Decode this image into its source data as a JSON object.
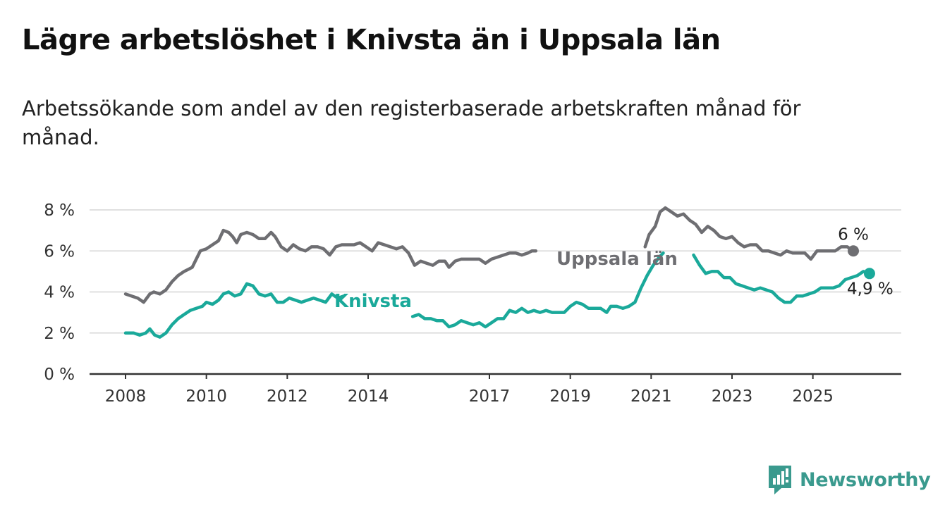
{
  "title": "Lägre arbetslöshet i Knivsta än i Uppsala län",
  "subtitle": "Arbetssökande som andel av den registerbaserade arbetskraften månad för månad.",
  "brand": {
    "name": "Newsworthy",
    "icon": "newsworthy-logo-icon",
    "color": "#3a9a8e"
  },
  "chart_data": {
    "type": "line",
    "title": "Lägre arbetslöshet i Knivsta än i Uppsala län",
    "ylabel": "",
    "xlabel": "",
    "ylim": [
      0,
      8
    ],
    "yticks": [
      {
        "value": 0,
        "label": "0 %"
      },
      {
        "value": 2,
        "label": "2 %"
      },
      {
        "value": 4,
        "label": "4 %"
      },
      {
        "value": 6,
        "label": "6 %"
      },
      {
        "value": 8,
        "label": "8 %"
      }
    ],
    "xticks": [
      {
        "value": 2008.0,
        "label": "2008"
      },
      {
        "value": 2010.0,
        "label": "2010"
      },
      {
        "value": 2012.0,
        "label": "2012"
      },
      {
        "value": 2014.0,
        "label": "2014"
      },
      {
        "value": 2017.0,
        "label": "2017"
      },
      {
        "value": 2019.0,
        "label": "2019"
      },
      {
        "value": 2021.0,
        "label": "2021"
      },
      {
        "value": 2023.0,
        "label": "2023"
      },
      {
        "value": 2025.0,
        "label": "2025"
      }
    ],
    "grid": true,
    "legend": "inline labels",
    "series": [
      {
        "name": "Uppsala län",
        "color": "#6e6e72",
        "end_label": "6 %",
        "points": [
          [
            2008.0,
            3.9
          ],
          [
            2008.3,
            3.7
          ],
          [
            2008.45,
            3.5
          ],
          [
            2008.6,
            3.9
          ],
          [
            2008.7,
            4.0
          ],
          [
            2008.85,
            3.9
          ],
          [
            2009.0,
            4.1
          ],
          [
            2009.15,
            4.5
          ],
          [
            2009.3,
            4.8
          ],
          [
            2009.45,
            5.0
          ],
          [
            2009.55,
            5.1
          ],
          [
            2009.65,
            5.2
          ],
          [
            2009.75,
            5.6
          ],
          [
            2009.85,
            6.0
          ],
          [
            2010.0,
            6.1
          ],
          [
            2010.15,
            6.3
          ],
          [
            2010.3,
            6.5
          ],
          [
            2010.42,
            7.0
          ],
          [
            2010.55,
            6.9
          ],
          [
            2010.65,
            6.7
          ],
          [
            2010.75,
            6.4
          ],
          [
            2010.85,
            6.8
          ],
          [
            2011.0,
            6.9
          ],
          [
            2011.15,
            6.8
          ],
          [
            2011.3,
            6.6
          ],
          [
            2011.45,
            6.6
          ],
          [
            2011.6,
            6.9
          ],
          [
            2011.7,
            6.7
          ],
          [
            2011.85,
            6.2
          ],
          [
            2012.0,
            6.0
          ],
          [
            2012.15,
            6.3
          ],
          [
            2012.3,
            6.1
          ],
          [
            2012.45,
            6.0
          ],
          [
            2012.6,
            6.2
          ],
          [
            2012.75,
            6.2
          ],
          [
            2012.9,
            6.1
          ],
          [
            2013.05,
            5.8
          ],
          [
            2013.2,
            6.2
          ],
          [
            2013.35,
            6.3
          ],
          [
            2013.5,
            6.3
          ],
          [
            2013.65,
            6.3
          ],
          [
            2013.8,
            6.4
          ],
          [
            2013.95,
            6.2
          ],
          [
            2014.1,
            6.0
          ],
          [
            2014.25,
            6.4
          ],
          [
            2014.4,
            6.3
          ],
          [
            2014.55,
            6.2
          ],
          [
            2014.7,
            6.1
          ],
          [
            2014.85,
            6.2
          ],
          [
            2015.0,
            5.9
          ],
          [
            2015.15,
            5.3
          ],
          [
            2015.3,
            5.5
          ],
          [
            2015.45,
            5.4
          ],
          [
            2015.6,
            5.3
          ],
          [
            2015.75,
            5.5
          ],
          [
            2015.9,
            5.5
          ],
          [
            2016.0,
            5.2
          ],
          [
            2016.15,
            5.5
          ],
          [
            2016.3,
            5.6
          ],
          [
            2016.45,
            5.6
          ],
          [
            2016.6,
            5.6
          ],
          [
            2016.75,
            5.6
          ],
          [
            2016.9,
            5.4
          ],
          [
            2017.05,
            5.6
          ],
          [
            2017.2,
            5.7
          ],
          [
            2017.35,
            5.8
          ],
          [
            2017.5,
            5.9
          ],
          [
            2017.65,
            5.9
          ],
          [
            2017.8,
            5.8
          ],
          [
            2017.95,
            5.9
          ],
          [
            2018.05,
            6.0
          ],
          [
            2018.15,
            6.0
          ]
        ],
        "points_2": [
          [
            2020.85,
            6.2
          ],
          [
            2020.95,
            6.8
          ],
          [
            2021.1,
            7.2
          ],
          [
            2021.22,
            7.9
          ],
          [
            2021.35,
            8.1
          ],
          [
            2021.5,
            7.9
          ],
          [
            2021.65,
            7.7
          ],
          [
            2021.8,
            7.8
          ],
          [
            2021.95,
            7.5
          ],
          [
            2022.1,
            7.3
          ],
          [
            2022.25,
            6.9
          ],
          [
            2022.4,
            7.2
          ],
          [
            2022.55,
            7.0
          ],
          [
            2022.7,
            6.7
          ],
          [
            2022.85,
            6.6
          ],
          [
            2023.0,
            6.7
          ],
          [
            2023.15,
            6.4
          ],
          [
            2023.3,
            6.2
          ],
          [
            2023.45,
            6.3
          ],
          [
            2023.6,
            6.3
          ],
          [
            2023.75,
            6.0
          ],
          [
            2023.9,
            6.0
          ],
          [
            2024.05,
            5.9
          ],
          [
            2024.2,
            5.8
          ],
          [
            2024.35,
            6.0
          ],
          [
            2024.5,
            5.9
          ],
          [
            2024.65,
            5.9
          ],
          [
            2024.8,
            5.9
          ],
          [
            2024.95,
            5.6
          ],
          [
            2025.1,
            6.0
          ],
          [
            2025.25,
            6.0
          ],
          [
            2025.4,
            6.0
          ],
          [
            2025.55,
            6.0
          ],
          [
            2025.7,
            6.2
          ],
          [
            2025.85,
            6.2
          ],
          [
            2026.0,
            6.0
          ]
        ]
      },
      {
        "name": "Knivsta",
        "color": "#1aa99a",
        "end_label": "4,9 %",
        "points": [
          [
            2008.0,
            2.0
          ],
          [
            2008.2,
            2.0
          ],
          [
            2008.35,
            1.9
          ],
          [
            2008.5,
            2.0
          ],
          [
            2008.6,
            2.2
          ],
          [
            2008.72,
            1.9
          ],
          [
            2008.85,
            1.8
          ],
          [
            2009.0,
            2.0
          ],
          [
            2009.15,
            2.4
          ],
          [
            2009.3,
            2.7
          ],
          [
            2009.45,
            2.9
          ],
          [
            2009.6,
            3.1
          ],
          [
            2009.75,
            3.2
          ],
          [
            2009.9,
            3.3
          ],
          [
            2010.0,
            3.5
          ],
          [
            2010.15,
            3.4
          ],
          [
            2010.3,
            3.6
          ],
          [
            2010.42,
            3.9
          ],
          [
            2010.55,
            4.0
          ],
          [
            2010.7,
            3.8
          ],
          [
            2010.85,
            3.9
          ],
          [
            2011.0,
            4.4
          ],
          [
            2011.15,
            4.3
          ],
          [
            2011.3,
            3.9
          ],
          [
            2011.45,
            3.8
          ],
          [
            2011.6,
            3.9
          ],
          [
            2011.75,
            3.5
          ],
          [
            2011.9,
            3.5
          ],
          [
            2012.05,
            3.7
          ],
          [
            2012.2,
            3.6
          ],
          [
            2012.35,
            3.5
          ],
          [
            2012.5,
            3.6
          ],
          [
            2012.65,
            3.7
          ],
          [
            2012.8,
            3.6
          ],
          [
            2012.95,
            3.5
          ],
          [
            2013.1,
            3.9
          ],
          [
            2013.25,
            3.7
          ],
          [
            2013.4,
            3.8
          ]
        ],
        "points_2": [
          [
            2015.1,
            2.8
          ],
          [
            2015.25,
            2.9
          ],
          [
            2015.4,
            2.7
          ],
          [
            2015.55,
            2.7
          ],
          [
            2015.7,
            2.6
          ],
          [
            2015.85,
            2.6
          ],
          [
            2016.0,
            2.3
          ],
          [
            2016.15,
            2.4
          ],
          [
            2016.3,
            2.6
          ],
          [
            2016.45,
            2.5
          ],
          [
            2016.6,
            2.4
          ],
          [
            2016.75,
            2.5
          ],
          [
            2016.9,
            2.3
          ],
          [
            2017.05,
            2.5
          ],
          [
            2017.2,
            2.7
          ],
          [
            2017.35,
            2.7
          ],
          [
            2017.5,
            3.1
          ],
          [
            2017.65,
            3.0
          ],
          [
            2017.8,
            3.2
          ],
          [
            2017.95,
            3.0
          ],
          [
            2018.1,
            3.1
          ],
          [
            2018.25,
            3.0
          ],
          [
            2018.4,
            3.1
          ],
          [
            2018.55,
            3.0
          ],
          [
            2018.7,
            3.0
          ],
          [
            2018.85,
            3.0
          ],
          [
            2019.0,
            3.3
          ],
          [
            2019.15,
            3.5
          ],
          [
            2019.3,
            3.4
          ],
          [
            2019.45,
            3.2
          ],
          [
            2019.6,
            3.2
          ],
          [
            2019.75,
            3.2
          ],
          [
            2019.9,
            3.0
          ],
          [
            2020.0,
            3.3
          ],
          [
            2020.15,
            3.3
          ],
          [
            2020.3,
            3.2
          ],
          [
            2020.45,
            3.3
          ],
          [
            2020.6,
            3.5
          ],
          [
            2020.75,
            4.2
          ],
          [
            2020.9,
            4.8
          ],
          [
            2021.05,
            5.3
          ],
          [
            2021.2,
            5.7
          ],
          [
            2021.3,
            5.9
          ]
        ],
        "points_3": [
          [
            2022.05,
            5.8
          ],
          [
            2022.2,
            5.3
          ],
          [
            2022.35,
            4.9
          ],
          [
            2022.5,
            5.0
          ],
          [
            2022.65,
            5.0
          ],
          [
            2022.8,
            4.7
          ],
          [
            2022.95,
            4.7
          ],
          [
            2023.1,
            4.4
          ],
          [
            2023.25,
            4.3
          ],
          [
            2023.4,
            4.2
          ],
          [
            2023.55,
            4.1
          ],
          [
            2023.7,
            4.2
          ],
          [
            2023.85,
            4.1
          ],
          [
            2024.0,
            4.0
          ],
          [
            2024.15,
            3.7
          ],
          [
            2024.3,
            3.5
          ],
          [
            2024.45,
            3.5
          ],
          [
            2024.6,
            3.8
          ],
          [
            2024.75,
            3.8
          ],
          [
            2024.9,
            3.9
          ],
          [
            2025.05,
            4.0
          ],
          [
            2025.2,
            4.2
          ],
          [
            2025.35,
            4.2
          ],
          [
            2025.5,
            4.2
          ],
          [
            2025.65,
            4.3
          ],
          [
            2025.8,
            4.6
          ],
          [
            2025.95,
            4.7
          ],
          [
            2026.1,
            4.8
          ],
          [
            2026.25,
            5.0
          ],
          [
            2026.4,
            4.9
          ]
        ]
      }
    ]
  }
}
